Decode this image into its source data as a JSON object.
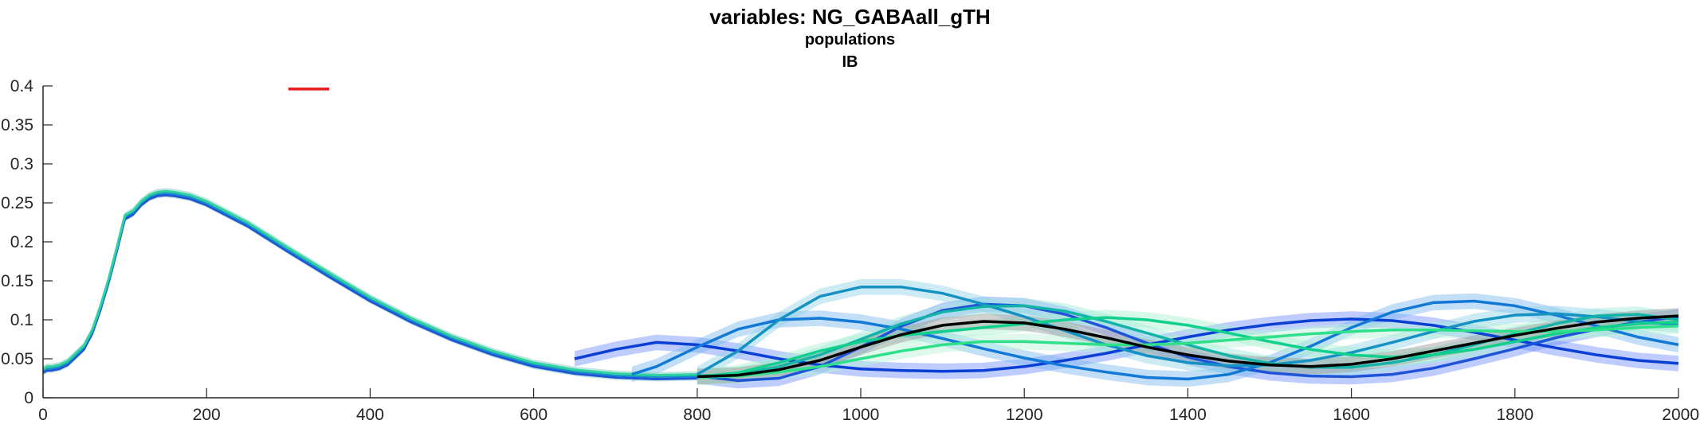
{
  "chart_data": {
    "type": "line",
    "title": "variables: NG_GABAall_gTH",
    "subtitle_lines": [
      "populations",
      "IB"
    ],
    "xlabel": "",
    "ylabel": "",
    "xlim": [
      0,
      2000
    ],
    "ylim": [
      0,
      0.4
    ],
    "x_ticks": [
      0,
      200,
      400,
      600,
      800,
      1000,
      1200,
      1400,
      1600,
      1800,
      2000
    ],
    "y_ticks": [
      0,
      0.05,
      0.1,
      0.15,
      0.2,
      0.25,
      0.3,
      0.35,
      0.4
    ],
    "x_tick_labels": [
      "0",
      "200",
      "400",
      "600",
      "800",
      "1000",
      "1200",
      "1400",
      "1600",
      "1800",
      "2000"
    ],
    "y_tick_labels": [
      "0",
      "0.05",
      "0.1",
      "0.15",
      "0.2",
      "0.25",
      "0.3",
      "0.35",
      "0.4"
    ],
    "grid": false,
    "legend": "none",
    "marker_segment": {
      "x": [
        300,
        350
      ],
      "y": 0.396,
      "color": "#e8191c"
    },
    "shared_initial_curve": {
      "x": [
        0,
        5,
        10,
        20,
        30,
        50,
        60,
        70,
        80,
        90,
        100,
        110,
        120,
        130,
        140,
        150,
        160,
        180,
        200,
        250,
        300,
        350,
        400,
        450,
        500,
        550,
        600,
        650,
        700,
        750,
        800
      ],
      "y": [
        0.035,
        0.038,
        0.038,
        0.04,
        0.045,
        0.065,
        0.085,
        0.115,
        0.15,
        0.19,
        0.232,
        0.238,
        0.25,
        0.258,
        0.262,
        0.263,
        0.262,
        0.258,
        0.25,
        0.223,
        0.19,
        0.158,
        0.127,
        0.1,
        0.077,
        0.058,
        0.043,
        0.034,
        0.029,
        0.027,
        0.028
      ]
    },
    "series": [
      {
        "color": "#0a3fd6",
        "band_color": "#6f8fff",
        "x": [
          650,
          700,
          750,
          800,
          850,
          900,
          950,
          1000,
          1050,
          1100,
          1150,
          1200,
          1250,
          1300,
          1350,
          1400,
          1450,
          1500,
          1550,
          1600,
          1650,
          1700,
          1750,
          1800,
          1850,
          1900,
          1950,
          2000
        ],
        "y": [
          0.05,
          0.062,
          0.071,
          0.068,
          0.06,
          0.05,
          0.042,
          0.037,
          0.035,
          0.034,
          0.035,
          0.04,
          0.048,
          0.057,
          0.068,
          0.078,
          0.087,
          0.094,
          0.099,
          0.101,
          0.099,
          0.093,
          0.084,
          0.074,
          0.064,
          0.055,
          0.048,
          0.044
        ]
      },
      {
        "color": "#1f54d9",
        "band_color": "#6f8fff",
        "x": [
          800,
          850,
          900,
          950,
          1000,
          1050,
          1100,
          1150,
          1200,
          1250,
          1300,
          1350,
          1400,
          1450,
          1500,
          1550,
          1600,
          1650,
          1700,
          1750,
          1800,
          1850,
          1900,
          1950,
          2000
        ],
        "y": [
          0.028,
          0.022,
          0.025,
          0.04,
          0.065,
          0.092,
          0.112,
          0.12,
          0.118,
          0.107,
          0.09,
          0.07,
          0.052,
          0.04,
          0.032,
          0.028,
          0.027,
          0.03,
          0.038,
          0.05,
          0.063,
          0.077,
          0.088,
          0.097,
          0.104
        ]
      },
      {
        "color": "#1279d6",
        "band_color": "#79b8f0",
        "x": [
          720,
          750,
          800,
          850,
          900,
          950,
          1000,
          1050,
          1100,
          1150,
          1200,
          1250,
          1300,
          1350,
          1400,
          1450,
          1500,
          1550,
          1600,
          1650,
          1700,
          1750,
          1800,
          1850,
          1900,
          1950,
          2000
        ],
        "y": [
          0.03,
          0.04,
          0.065,
          0.088,
          0.1,
          0.102,
          0.097,
          0.088,
          0.076,
          0.063,
          0.051,
          0.041,
          0.033,
          0.026,
          0.024,
          0.03,
          0.045,
          0.066,
          0.09,
          0.11,
          0.122,
          0.124,
          0.118,
          0.106,
          0.092,
          0.078,
          0.068
        ]
      },
      {
        "color": "#1591c4",
        "band_color": "#8fd3e6",
        "x": [
          800,
          850,
          900,
          950,
          1000,
          1050,
          1100,
          1150,
          1200,
          1250,
          1300,
          1350,
          1400,
          1450,
          1500,
          1550,
          1600,
          1650,
          1700,
          1750,
          1800,
          1850,
          1900,
          1950,
          2000
        ],
        "y": [
          0.03,
          0.06,
          0.1,
          0.13,
          0.142,
          0.142,
          0.134,
          0.12,
          0.104,
          0.086,
          0.068,
          0.054,
          0.045,
          0.041,
          0.042,
          0.048,
          0.058,
          0.071,
          0.085,
          0.098,
          0.106,
          0.108,
          0.104,
          0.098,
          0.093
        ]
      },
      {
        "color": "#12b3a8",
        "band_color": "#9fe6d9",
        "x": [
          800,
          850,
          900,
          950,
          1000,
          1050,
          1100,
          1150,
          1200,
          1250,
          1300,
          1350,
          1400,
          1450,
          1500,
          1550,
          1600,
          1650,
          1700,
          1750,
          1800,
          1850,
          1900,
          1950,
          2000
        ],
        "y": [
          0.028,
          0.03,
          0.04,
          0.055,
          0.075,
          0.095,
          0.11,
          0.117,
          0.118,
          0.111,
          0.098,
          0.083,
          0.068,
          0.054,
          0.044,
          0.039,
          0.039,
          0.045,
          0.055,
          0.068,
          0.082,
          0.095,
          0.105,
          0.107,
          0.1
        ]
      },
      {
        "color": "#10d08d",
        "band_color": "#a8f0d1",
        "x": [
          800,
          850,
          900,
          950,
          1000,
          1050,
          1100,
          1150,
          1200,
          1250,
          1300,
          1350,
          1400,
          1450,
          1500,
          1550,
          1600,
          1650,
          1700,
          1750,
          1800,
          1850,
          1900,
          1950,
          2000
        ],
        "y": [
          0.027,
          0.032,
          0.045,
          0.06,
          0.072,
          0.08,
          0.085,
          0.09,
          0.095,
          0.1,
          0.103,
          0.1,
          0.093,
          0.083,
          0.072,
          0.062,
          0.055,
          0.052,
          0.055,
          0.062,
          0.072,
          0.082,
          0.09,
          0.095,
          0.097
        ]
      },
      {
        "color": "#2fe08a",
        "band_color": "#b8f5d8",
        "x": [
          800,
          850,
          900,
          950,
          1000,
          1050,
          1100,
          1150,
          1200,
          1250,
          1300,
          1350,
          1400,
          1450,
          1500,
          1550,
          1600,
          1650,
          1700,
          1750,
          1800,
          1850,
          1900,
          1950,
          2000
        ],
        "y": [
          0.026,
          0.028,
          0.033,
          0.04,
          0.05,
          0.06,
          0.068,
          0.072,
          0.072,
          0.07,
          0.068,
          0.068,
          0.07,
          0.074,
          0.078,
          0.082,
          0.085,
          0.087,
          0.087,
          0.086,
          0.085,
          0.085,
          0.087,
          0.09,
          0.092
        ]
      },
      {
        "color": "#000000",
        "band_color": "#9a9a9a",
        "x": [
          800,
          850,
          900,
          950,
          1000,
          1050,
          1100,
          1150,
          1200,
          1250,
          1300,
          1350,
          1400,
          1450,
          1500,
          1550,
          1600,
          1650,
          1700,
          1750,
          1800,
          1850,
          1900,
          1950,
          2000
        ],
        "y": [
          0.027,
          0.029,
          0.036,
          0.048,
          0.065,
          0.081,
          0.093,
          0.098,
          0.096,
          0.088,
          0.077,
          0.065,
          0.055,
          0.047,
          0.042,
          0.04,
          0.043,
          0.05,
          0.06,
          0.07,
          0.08,
          0.089,
          0.097,
          0.102,
          0.105
        ]
      }
    ]
  }
}
